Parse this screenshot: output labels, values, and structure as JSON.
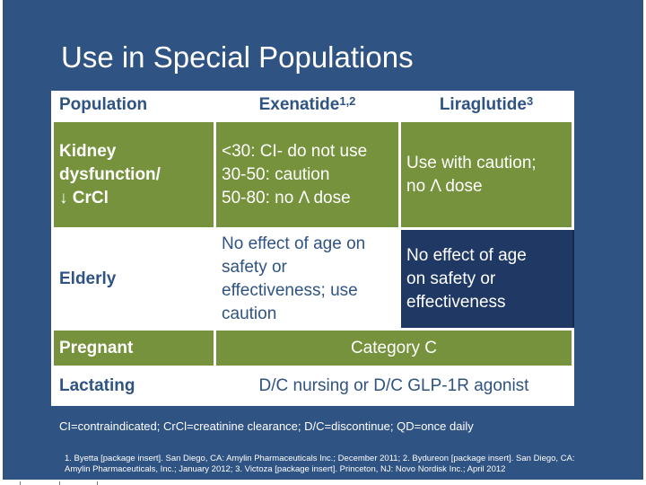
{
  "slide": {
    "title": "Use in Special Populations",
    "table": {
      "headers": [
        {
          "text": "Population",
          "sup": ""
        },
        {
          "text": "Exenatide",
          "sup": "1,2"
        },
        {
          "text": "Liraglutide",
          "sup": "3"
        }
      ],
      "rows": [
        {
          "label_lines": [
            "Kidney",
            "dysfunction/",
            "↓ CrCl"
          ],
          "exenatide_lines": [
            "<30: CI- do not use",
            "30-50: caution",
            "50-80: no Λ dose"
          ],
          "liraglutide_lines": [
            "Use with caution;",
            "no Λ dose"
          ]
        },
        {
          "label_lines": [
            "Elderly"
          ],
          "exenatide_lines": [
            "No effect of age on",
            "safety or",
            "effectiveness; use",
            "caution"
          ],
          "liraglutide_lines": [
            "No effect of age",
            "on safety or",
            "effectiveness"
          ]
        },
        {
          "label_lines": [
            "Pregnant"
          ],
          "merged": "Category C"
        },
        {
          "label_lines": [
            "Lactating"
          ],
          "merged": "D/C nursing or D/C GLP-1R agonist"
        }
      ]
    },
    "footnote": "CI=contraindicated; CrCl=creatinine clearance; D/C=discontinue; QD=once daily",
    "references": "1. Byetta [package insert]. San Diego, CA: Amylin Pharmaceuticals Inc.; December 2011; 2. Bydureon [package insert]. San Diego, CA: Amylin Pharmaceuticals, Inc.; January 2012; 3. Victoza [package insert]. Princeton, NJ: Novo Nordisk Inc.; April 2012"
  },
  "colors": {
    "background": "#2f5382",
    "green_row": "#76923c",
    "navy_cell": "#1f3864",
    "text_on_white": "#2f5382"
  }
}
